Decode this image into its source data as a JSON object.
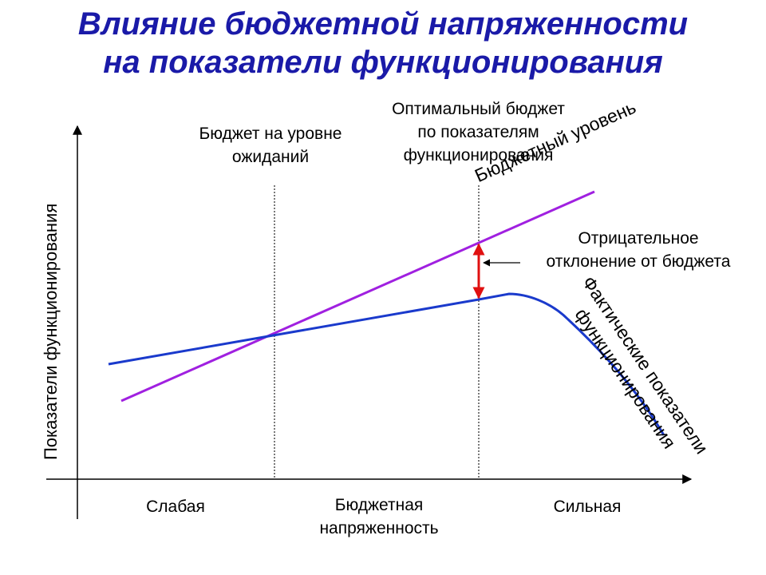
{
  "title": {
    "line1": "Влияние бюджетной напряженности",
    "line2": "на показатели функционирования"
  },
  "labels": {
    "expected_budget": [
      "Бюджет на уровне",
      "ожиданий"
    ],
    "optimal_budget": [
      "Оптимальный бюджет",
      "по показателям",
      "функционирования"
    ],
    "negative_deviation": [
      "Отрицательное",
      "отклонение от бюджета"
    ],
    "budget_level": "Бюджетный уровень",
    "actual_performance": [
      "Фактические показатели",
      "функционирования"
    ],
    "y_axis": "Показатели функционирования",
    "weak": "Слабая",
    "budget_tension": [
      "Бюджетная",
      "напряженность"
    ],
    "strong": "Сильная"
  },
  "colors": {
    "title": "#1a1aa8",
    "budget_line": "#a020e0",
    "actual_line": "#1a3acc",
    "deviation_arrow": "#e01010",
    "axis": "#000000"
  }
}
